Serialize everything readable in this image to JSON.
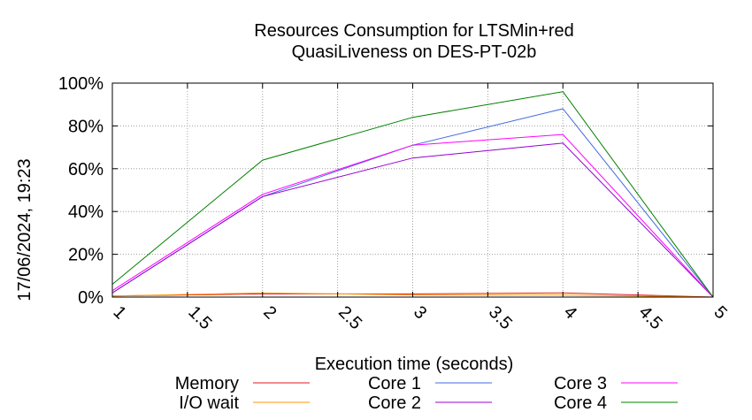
{
  "chart_data": {
    "type": "line",
    "title": "Resources Consumption for LTSMin+red",
    "subtitle": "QuasiLiveness on DES-PT-02b",
    "xlabel": "Execution time (seconds)",
    "ylabel": "",
    "timestamp": "17/06/2024, 19:23",
    "xlim": [
      1,
      5
    ],
    "ylim": [
      0,
      100
    ],
    "x_ticks": [
      "1",
      "1.5",
      "2",
      "2.5",
      "3",
      "3.5",
      "4",
      "4.5",
      "5"
    ],
    "y_ticks": [
      "0%",
      "20%",
      "40%",
      "60%",
      "80%",
      "100%"
    ],
    "grid": true,
    "legend_position": "bottom",
    "x": [
      1,
      2,
      3,
      4,
      5
    ],
    "series": [
      {
        "name": "Memory",
        "color": "#e41a1c",
        "values": [
          0.5,
          1.5,
          1.5,
          2,
          0
        ]
      },
      {
        "name": "I/O wait",
        "color": "#ff9900",
        "values": [
          0.5,
          2,
          1,
          1,
          0
        ]
      },
      {
        "name": "Core 1",
        "color": "#4169e1",
        "values": [
          2,
          47,
          71,
          88,
          0
        ]
      },
      {
        "name": "Core 2",
        "color": "#9400d3",
        "values": [
          2,
          47,
          65,
          72,
          0
        ]
      },
      {
        "name": "Core 3",
        "color": "#ff00ff",
        "values": [
          3,
          48,
          71,
          76,
          0
        ]
      },
      {
        "name": "Core 4",
        "color": "#008000",
        "values": [
          6,
          64,
          84,
          96,
          0
        ]
      }
    ]
  }
}
